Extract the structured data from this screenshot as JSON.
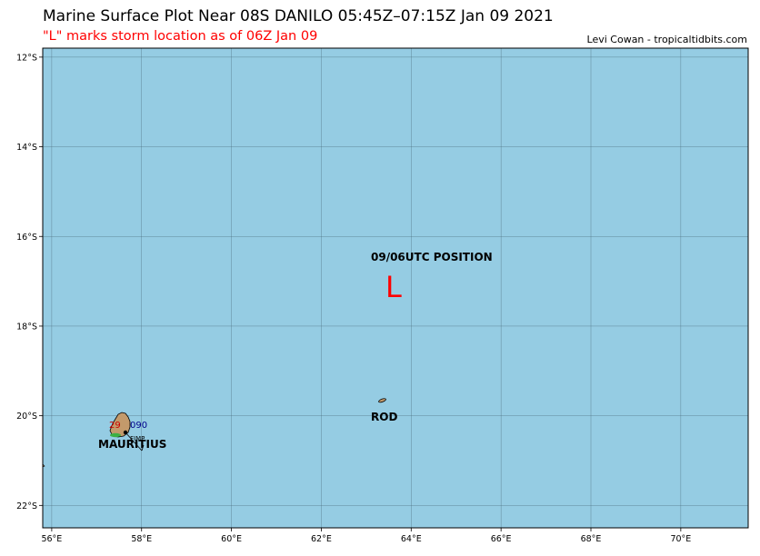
{
  "header": {
    "title": "Marine Surface Plot Near 08S DANILO 05:45Z–07:15Z Jan 09 2021",
    "subtitle": "\"L\" marks storm location as of 06Z Jan 09",
    "credit": "Levi Cowan - tropicaltidbits.com"
  },
  "colors": {
    "ocean": "#95cce3",
    "land": "#c39a6b",
    "grid": "#4a6a7a",
    "storm": "#ff0000",
    "obs_temp": "#cc0000",
    "obs_pressure": "#00008b",
    "obs_marker": "#3cb043"
  },
  "map": {
    "lon_range": [
      55.8,
      71.5
    ],
    "lat_range": [
      -22.5,
      -11.8
    ],
    "lon_ticks": [
      {
        "value": 56,
        "label": "56°E"
      },
      {
        "value": 58,
        "label": "58°E"
      },
      {
        "value": 60,
        "label": "60°E"
      },
      {
        "value": 62,
        "label": "62°E"
      },
      {
        "value": 64,
        "label": "64°E"
      },
      {
        "value": 66,
        "label": "66°E"
      },
      {
        "value": 68,
        "label": "68°E"
      },
      {
        "value": 70,
        "label": "70°E"
      }
    ],
    "lat_ticks": [
      {
        "value": -12,
        "label": "12°S"
      },
      {
        "value": -14,
        "label": "14°S"
      },
      {
        "value": -16,
        "label": "16°S"
      },
      {
        "value": -18,
        "label": "18°S"
      },
      {
        "value": -20,
        "label": "20°S"
      },
      {
        "value": -22,
        "label": "22°S"
      }
    ],
    "grid": true
  },
  "storm": {
    "position_label": "09/06UTC POSITION",
    "marker": "L",
    "lon": 63.6,
    "lat": -17.3
  },
  "places": {
    "mauritius": {
      "label": "MAURITIUS",
      "lon": 57.55,
      "lat": -20.3
    },
    "rodrigues": {
      "label": "ROD",
      "lon": 63.42,
      "lat": -19.7
    }
  },
  "observation": {
    "lon": 57.68,
    "lat": -20.43,
    "temperature": "29",
    "pressure": "090",
    "station_id": "FIMP"
  }
}
